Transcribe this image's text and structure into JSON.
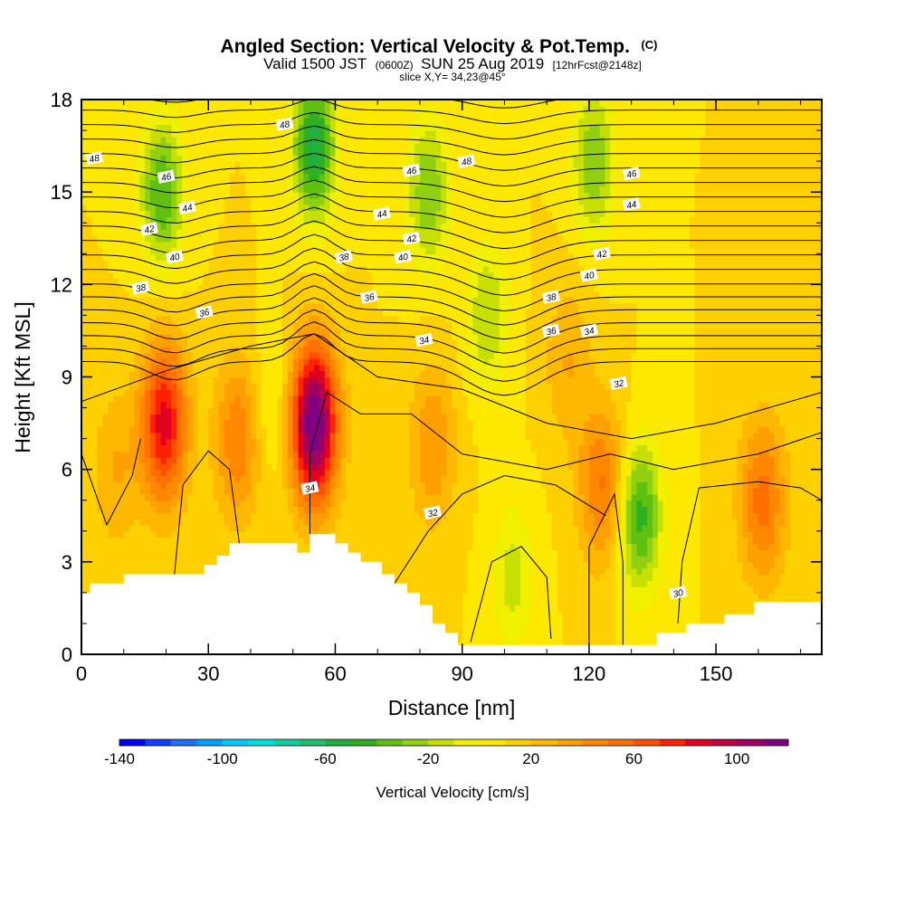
{
  "chart_data": {
    "type": "heatmap",
    "title": "Angled Section: Vertical Velocity & Pot.Temp.",
    "title_unit": "(C)",
    "subtitle_parts": [
      "Valid 1500 JST",
      "(0600Z)",
      "SUN 25 Aug 2019",
      "[12hrFcst@2148z]"
    ],
    "slice_label": "slice X,Y= 34,23@45°",
    "xlabel": "Distance [nm]",
    "ylabel": "Height [Kft MSL]",
    "xlim": [
      0,
      175
    ],
    "ylim": [
      0,
      18
    ],
    "x_ticks": [
      "0",
      "30",
      "60",
      "90",
      "120",
      "150"
    ],
    "y_ticks": [
      "0",
      "3",
      "6",
      "9",
      "12",
      "15",
      "18"
    ],
    "x_tick_values": [
      0,
      30,
      60,
      90,
      120,
      150
    ],
    "y_tick_values": [
      0,
      3,
      6,
      9,
      12,
      15,
      18
    ],
    "colorbar": {
      "label": "Vertical Velocity [cm/s]",
      "range": [
        -140,
        120
      ],
      "step": 10,
      "tick_labels": [
        "-140",
        "-100",
        "-60",
        "-20",
        "20",
        "60",
        "100"
      ],
      "tick_values": [
        -140,
        -100,
        -60,
        -20,
        20,
        60,
        100
      ],
      "colors": [
        "#0000ff",
        "#1040ff",
        "#2070ff",
        "#00a0ff",
        "#00ccff",
        "#00e0e0",
        "#10d0a0",
        "#20c070",
        "#20b040",
        "#30b020",
        "#60c010",
        "#90d010",
        "#c8e000",
        "#f0f000",
        "#ffe800",
        "#ffd000",
        "#ffb800",
        "#ffa000",
        "#ff8800",
        "#ff7000",
        "#ff5000",
        "#ff2000",
        "#e00020",
        "#c00040",
        "#a00060",
        "#800080"
      ]
    },
    "background_velocity": 10,
    "updrafts": [
      {
        "x": 19.5,
        "y": 7.5,
        "peak": 75
      },
      {
        "x": 55,
        "y": 7.5,
        "peak": 115
      },
      {
        "x": 37,
        "y": 7.0,
        "peak": 40
      },
      {
        "x": 123,
        "y": 5.5,
        "peak": 42
      },
      {
        "x": 83,
        "y": 6.8,
        "peak": 30
      },
      {
        "x": 161,
        "y": 5.0,
        "peak": 45
      },
      {
        "x": 8,
        "y": 6.0,
        "peak": 20
      },
      {
        "x": 115,
        "y": 9.5,
        "peak": 20
      }
    ],
    "downdrafts": [
      {
        "x": 19,
        "y": 15.0,
        "peak": -50
      },
      {
        "x": 55,
        "y": 16.5,
        "peak": -65
      },
      {
        "x": 82,
        "y": 15.0,
        "peak": -40
      },
      {
        "x": 96,
        "y": 11.0,
        "peak": -30
      },
      {
        "x": 121,
        "y": 16.0,
        "peak": -40
      },
      {
        "x": 132,
        "y": 4.5,
        "peak": -55
      },
      {
        "x": 45,
        "y": 8.0,
        "peak": -15
      },
      {
        "x": 102,
        "y": 2.5,
        "peak": -25
      }
    ],
    "terrain": [
      [
        0,
        2
      ],
      [
        2,
        2
      ],
      [
        2,
        2.3
      ],
      [
        10,
        2.3
      ],
      [
        10,
        2.6
      ],
      [
        29,
        2.6
      ],
      [
        29,
        2.9
      ],
      [
        32,
        2.9
      ],
      [
        32,
        3.2
      ],
      [
        35,
        3.2
      ],
      [
        35,
        3.6
      ],
      [
        51,
        3.6
      ],
      [
        51,
        3.3
      ],
      [
        54,
        3.3
      ],
      [
        54,
        3.9
      ],
      [
        60,
        3.9
      ],
      [
        60,
        3.6
      ],
      [
        63,
        3.6
      ],
      [
        63,
        3.3
      ],
      [
        66,
        3.3
      ],
      [
        66,
        3.0
      ],
      [
        71,
        3.0
      ],
      [
        71,
        2.6
      ],
      [
        74,
        2.6
      ],
      [
        74,
        2.3
      ],
      [
        77,
        2.3
      ],
      [
        77,
        2.0
      ],
      [
        80,
        2.0
      ],
      [
        80,
        1.6
      ],
      [
        83,
        1.6
      ],
      [
        83,
        1.0
      ],
      [
        86,
        1.0
      ],
      [
        86,
        0.7
      ],
      [
        89,
        0.7
      ],
      [
        89,
        0.3
      ],
      [
        136,
        0.3
      ],
      [
        136,
        0.7
      ],
      [
        143,
        0.7
      ],
      [
        143,
        1.0
      ],
      [
        152,
        1.0
      ],
      [
        152,
        1.3
      ],
      [
        159,
        1.3
      ],
      [
        159,
        1.7
      ],
      [
        175,
        1.7
      ]
    ],
    "theta_label_lines": [
      "30",
      "32",
      "34",
      "36",
      "38",
      "40",
      "42",
      "44",
      "46",
      "48"
    ],
    "contour_labels": [
      {
        "text": "48",
        "x": 48,
        "y": 17.2
      },
      {
        "text": "48",
        "x": 3,
        "y": 16.1
      },
      {
        "text": "48",
        "x": 91,
        "y": 16.0
      },
      {
        "text": "46",
        "x": 20,
        "y": 15.5
      },
      {
        "text": "46",
        "x": 78,
        "y": 15.7
      },
      {
        "text": "46",
        "x": 130,
        "y": 15.6
      },
      {
        "text": "44",
        "x": 25,
        "y": 14.5
      },
      {
        "text": "44",
        "x": 71,
        "y": 14.3
      },
      {
        "text": "44",
        "x": 130,
        "y": 14.6
      },
      {
        "text": "42",
        "x": 16,
        "y": 13.8
      },
      {
        "text": "42",
        "x": 78,
        "y": 13.5
      },
      {
        "text": "42",
        "x": 123,
        "y": 13.0
      },
      {
        "text": "40",
        "x": 22,
        "y": 12.9
      },
      {
        "text": "40",
        "x": 76,
        "y": 12.9
      },
      {
        "text": "40",
        "x": 120,
        "y": 12.3
      },
      {
        "text": "38",
        "x": 14,
        "y": 11.9
      },
      {
        "text": "38",
        "x": 62,
        "y": 12.9
      },
      {
        "text": "38",
        "x": 111,
        "y": 11.6
      },
      {
        "text": "36",
        "x": 29,
        "y": 11.1
      },
      {
        "text": "36",
        "x": 68,
        "y": 11.6
      },
      {
        "text": "36",
        "x": 111,
        "y": 10.5
      },
      {
        "text": "34",
        "x": 81,
        "y": 10.2
      },
      {
        "text": "34",
        "x": 120,
        "y": 10.5
      },
      {
        "text": "34",
        "x": 54,
        "y": 5.4
      },
      {
        "text": "32",
        "x": 127,
        "y": 8.8
      },
      {
        "text": "32",
        "x": 83,
        "y": 4.6
      },
      {
        "text": "30",
        "x": 141,
        "y": 2.0
      }
    ]
  }
}
